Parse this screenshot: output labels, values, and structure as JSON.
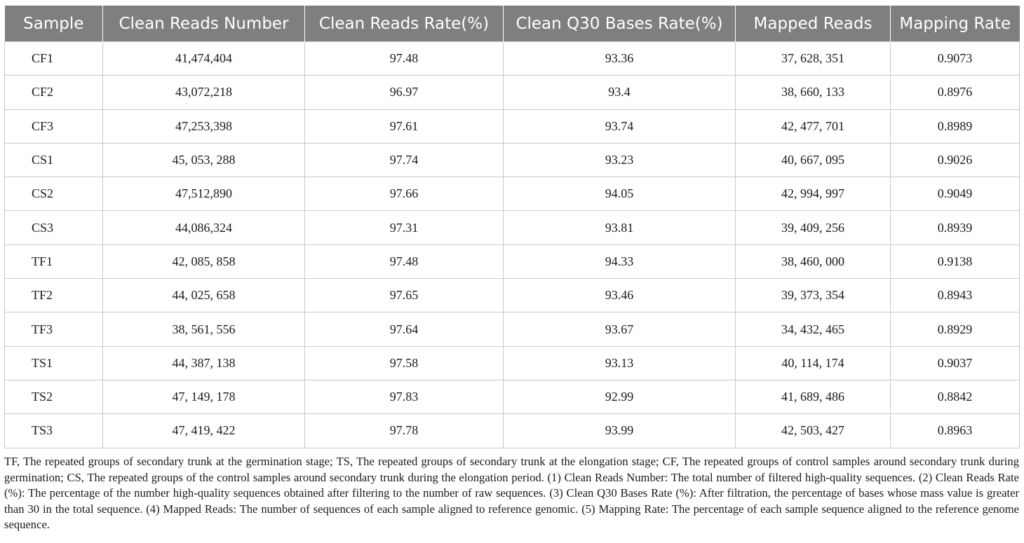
{
  "table": {
    "headers": [
      "Sample",
      "Clean Reads Number",
      "Clean Reads Rate(%)",
      "Clean Q30 Bases Rate(%)",
      "Mapped Reads",
      "Mapping Rate"
    ],
    "rows": [
      [
        "CF1",
        "41,474,404",
        "97.48",
        "93.36",
        "37, 628, 351",
        "0.9073"
      ],
      [
        "CF2",
        "43,072,218",
        "96.97",
        "93.4",
        "38, 660, 133",
        "0.8976"
      ],
      [
        "CF3",
        "47,253,398",
        "97.61",
        "93.74",
        "42, 477, 701",
        "0.8989"
      ],
      [
        "CS1",
        "45, 053, 288",
        "97.74",
        "93.23",
        "40, 667, 095",
        "0.9026"
      ],
      [
        "CS2",
        "47,512,890",
        "97.66",
        "94.05",
        "42, 994, 997",
        "0.9049"
      ],
      [
        "CS3",
        "44,086,324",
        "97.31",
        "93.81",
        "39, 409, 256",
        "0.8939"
      ],
      [
        "TF1",
        "42, 085, 858",
        "97.48",
        "94.33",
        "38, 460, 000",
        "0.9138"
      ],
      [
        "TF2",
        "44, 025, 658",
        "97.65",
        "93.46",
        "39, 373, 354",
        "0.8943"
      ],
      [
        "TF3",
        "38, 561, 556",
        "97.64",
        "93.67",
        "34, 432, 465",
        "0.8929"
      ],
      [
        "TS1",
        "44, 387, 138",
        "97.58",
        "93.13",
        "40, 114, 174",
        "0.9037"
      ],
      [
        "TS2",
        "47, 149, 178",
        "97.83",
        "92.99",
        "41, 689, 486",
        "0.8842"
      ],
      [
        "TS3",
        "47, 419, 422",
        "97.78",
        "93.99",
        "42, 503, 427",
        "0.8963"
      ]
    ]
  },
  "caption": "TF, The repeated groups of secondary trunk at the germination stage; TS, The repeated groups of secondary trunk at the elongation stage; CF, The repeated groups of control samples around secondary trunk during germination; CS, The repeated groups of the control samples around secondary trunk during the elongation period. (1) Clean Reads Number: The total number of filtered high-quality sequences. (2) Clean Reads Rate (%): The percentage of the number high-quality sequences obtained after filtering to the number of raw sequences. (3) Clean Q30 Bases Rate (%): After filtration, the percentage of bases whose mass value is greater than 30 in the total sequence. (4) Mapped Reads: The number of sequences of each sample aligned to reference genomic. (5) Mapping Rate: The percentage of each sample sequence aligned to the reference genome sequence.",
  "colors": {
    "header_bg": "#7f7f7f",
    "header_text": "#ffffff",
    "grid": "#c9c9c9",
    "text": "#1a1a1a"
  }
}
